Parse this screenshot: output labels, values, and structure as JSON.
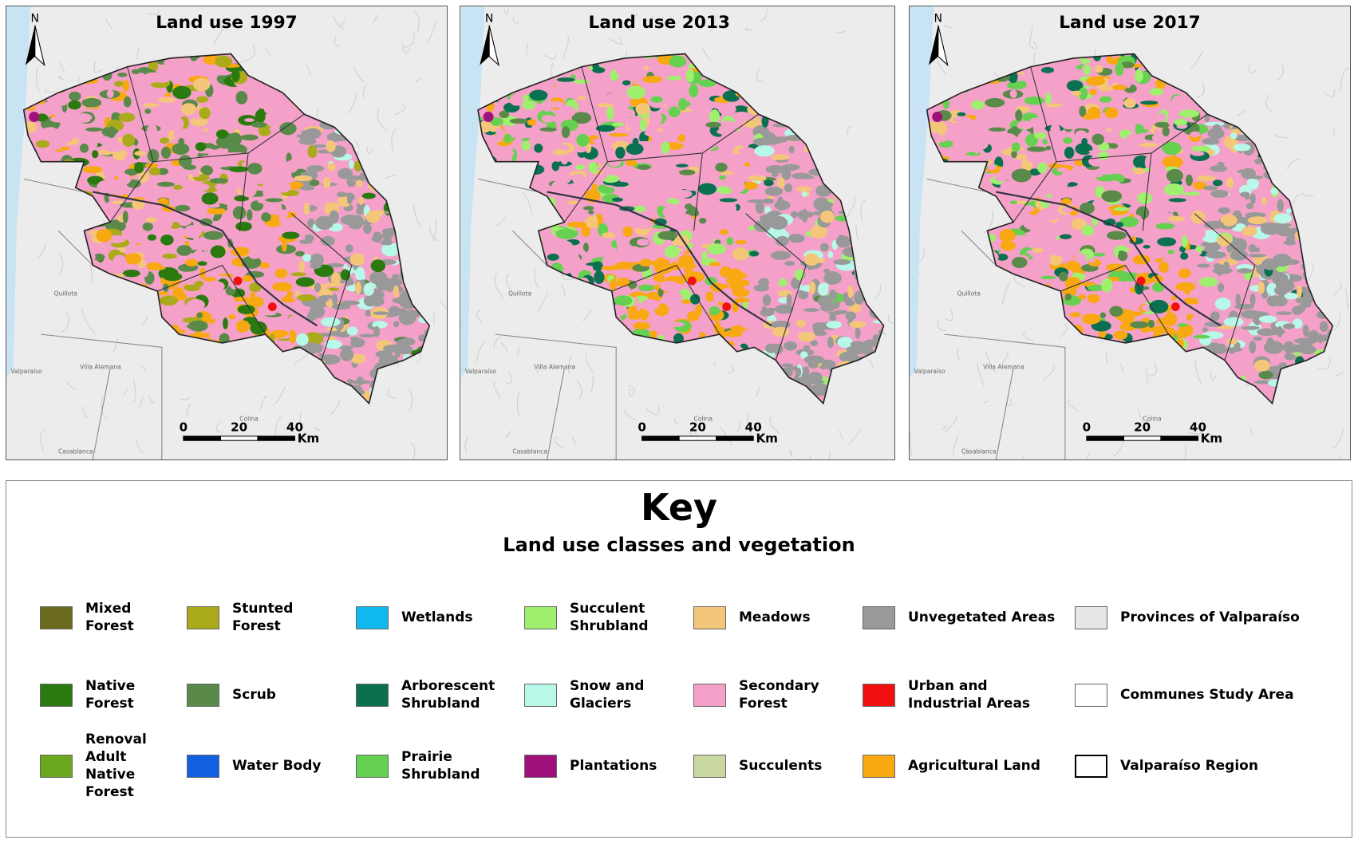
{
  "maps": [
    {
      "title": "Land use 1997"
    },
    {
      "title": "Land use 2013"
    },
    {
      "title": "Land use 2017"
    }
  ],
  "north": "N",
  "scale_bar": {
    "ticks": [
      0,
      20,
      40
    ],
    "unit": "Km"
  },
  "place_labels": [
    "Quillota",
    "Villa Alemana",
    "Valparaíso",
    "Colina",
    "Casablanca"
  ],
  "key": {
    "title": "Key",
    "subtitle": "Land use classes and vegetation",
    "items": [
      {
        "label": "Mixed Forest",
        "color": "#6b6b1e"
      },
      {
        "label": "Native Forest",
        "color": "#2a7a10"
      },
      {
        "label": "Renoval Adult Native Forest",
        "color": "#6aa820"
      },
      {
        "label": "Stunted Forest",
        "color": "#aaaa1a"
      },
      {
        "label": "Scrub",
        "color": "#5a8a4a"
      },
      {
        "label": "Water Body",
        "color": "#1060e0"
      },
      {
        "label": "Wetlands",
        "color": "#10b8f0"
      },
      {
        "label": "Arborescent Shrubland",
        "color": "#0a7050"
      },
      {
        "label": "Prairie Shrubland",
        "color": "#66d050"
      },
      {
        "label": "Succulent Shrubland",
        "color": "#a0f070"
      },
      {
        "label": "Snow and Glaciers",
        "color": "#b8f8e8"
      },
      {
        "label": "Plantations",
        "color": "#a0107a"
      },
      {
        "label": "Meadows",
        "color": "#f4c67a"
      },
      {
        "label": "Secondary Forest",
        "color": "#f4a0c8"
      },
      {
        "label": "Succulents",
        "color": "#c8d8a0"
      },
      {
        "label": "Unvegetated Areas",
        "color": "#999999"
      },
      {
        "label": "Urban and Industrial Areas",
        "color": "#f01010"
      },
      {
        "label": "Agricultural Land",
        "color": "#f8a810"
      },
      {
        "label": "Provinces of Valparaíso",
        "color": "#e6e6e6"
      },
      {
        "label": "Communes Study Area",
        "color": "#ffffff"
      },
      {
        "label": "Valparaíso Region",
        "color": "#ffffff"
      }
    ]
  }
}
